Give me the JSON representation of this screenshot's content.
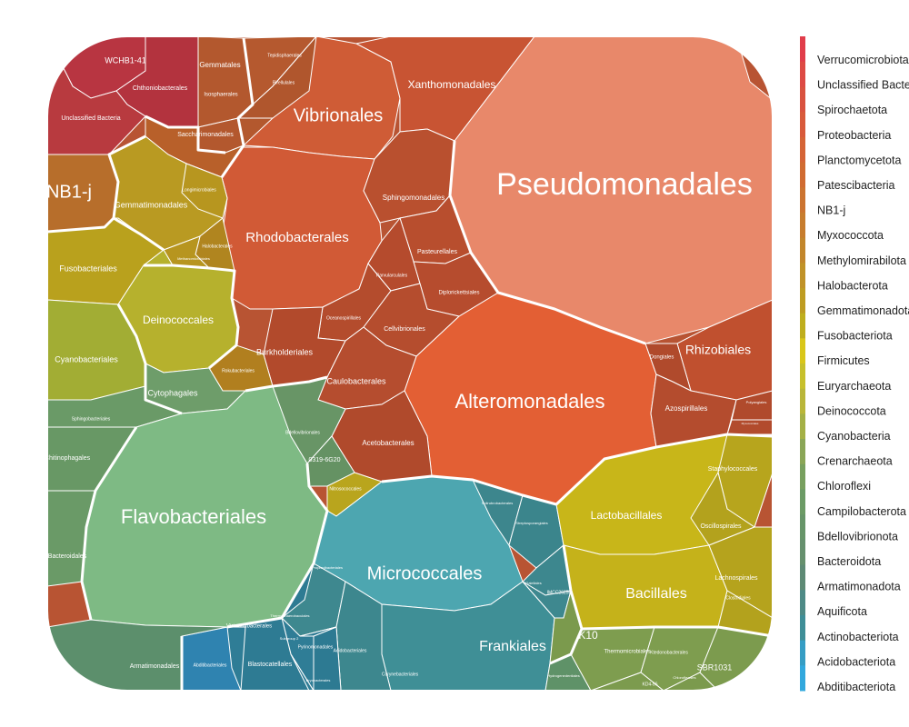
{
  "chart_data": {
    "type": "voronoi-treemap",
    "legend": {
      "placement": "right",
      "entries": [
        "Verrucomicrobiota",
        "Unclassified Bacteria",
        "Spirochaetota",
        "Proteobacteria",
        "Planctomycetota",
        "Patescibacteria",
        "NB1-j",
        "Myxococcota",
        "Methylomirabilota",
        "Halobacterota",
        "Gemmatimonadota",
        "Fusobacteriota",
        "Firmicutes",
        "Euryarchaeota",
        "Deinococcota",
        "Cyanobacteria",
        "Crenarchaeota",
        "Chloroflexi",
        "Campilobacterota",
        "Bdellovibrionota",
        "Bacteroidota",
        "Armatimonadota",
        "Aquificota",
        "Actinobacteriota",
        "Acidobacteriota",
        "Abditibacteriota"
      ],
      "colors": [
        "#e13d4a",
        "#dd4a44",
        "#d9523f",
        "#d85a3b",
        "#d56436",
        "#d06b31",
        "#cc7430",
        "#c77d2e",
        "#c2862c",
        "#c09228",
        "#be9c22",
        "#bfae1e",
        "#d9c61a",
        "#c7c02c",
        "#b9b639",
        "#a4b046",
        "#8aa657",
        "#78a05f",
        "#6c9b66",
        "#679569",
        "#66906e",
        "#5e8a75",
        "#4e8a86",
        "#3f8e97",
        "#369dc4",
        "#32a8dd"
      ]
    },
    "nodes": [
      {
        "label": "Pseudomonadales",
        "group": "Proteobacteria",
        "color": "#e8886a"
      },
      {
        "label": "Alteromonadales",
        "group": "Proteobacteria",
        "color": "#e35f34"
      },
      {
        "label": "Vibrionales",
        "group": "Proteobacteria",
        "color": "#cf5c36"
      },
      {
        "label": "Rhodobacterales",
        "group": "Proteobacteria",
        "color": "#d15a36"
      },
      {
        "label": "Xanthomonadales",
        "group": "Proteobacteria",
        "color": "#c85433"
      },
      {
        "label": "Rhizobiales",
        "group": "Proteobacteria",
        "color": "#c0502f"
      },
      {
        "label": "Sphingomonadales",
        "group": "Proteobacteria",
        "color": "#b9502f"
      },
      {
        "label": "Pasteurellales",
        "group": "Proteobacteria",
        "color": "#b84e2e"
      },
      {
        "label": "Parvularculales",
        "group": "Proteobacteria",
        "color": "#b54b2d"
      },
      {
        "label": "Diplorickettsiales",
        "group": "Proteobacteria",
        "color": "#b64c2e"
      },
      {
        "label": "Oceanospirillales",
        "group": "Proteobacteria",
        "color": "#b44c2d"
      },
      {
        "label": "Cellvibrionales",
        "group": "Proteobacteria",
        "color": "#b54d2e"
      },
      {
        "label": "Burkholderiales",
        "group": "Proteobacteria",
        "color": "#b24a2c"
      },
      {
        "label": "Caulobacterales",
        "group": "Proteobacteria",
        "color": "#b54d2f"
      },
      {
        "label": "Acetobacterales",
        "group": "Proteobacteria",
        "color": "#b04a2c"
      },
      {
        "label": "Dongiales",
        "group": "Proteobacteria",
        "color": "#b04a2c"
      },
      {
        "label": "Azospirillales",
        "group": "Proteobacteria",
        "color": "#b44c2e"
      },
      {
        "label": "Polyangiales",
        "group": "Myxococcota",
        "color": "#b04a2c"
      },
      {
        "label": "Myxococcales",
        "group": "Myxococcota",
        "color": "#b24b2d"
      },
      {
        "label": "WCHB1-41",
        "group": "Verrucomicrobiota",
        "color": "#b83541"
      },
      {
        "label": "Chthoniobacterales",
        "group": "Verrucomicrobiota",
        "color": "#b3333e"
      },
      {
        "label": "Unclassified Bacteria",
        "group": "Unclassified Bacteria",
        "color": "#b83a3f"
      },
      {
        "label": "Gemmatales",
        "group": "Planctomycetota",
        "color": "#b3582e"
      },
      {
        "label": "Tepidisphaerales",
        "group": "Planctomycetota",
        "color": "#b5592f"
      },
      {
        "label": "Pirellulales",
        "group": "Planctomycetota",
        "color": "#b0562d"
      },
      {
        "label": "Isosphaerales",
        "group": "Planctomycetota",
        "color": "#b3582e"
      },
      {
        "label": "Saccharimonadales",
        "group": "Patescibacteria",
        "color": "#b8602a"
      },
      {
        "label": "NB1-j",
        "group": "NB1-j",
        "color": "#b76e2b"
      },
      {
        "label": "Gemmatimonadales",
        "group": "Gemmatimonadota",
        "color": "#b99a22"
      },
      {
        "label": "Longimicrobiales",
        "group": "Gemmatimonadota",
        "color": "#b7961f"
      },
      {
        "label": "Halobacterales",
        "group": "Halobacterota",
        "color": "#b0851f"
      },
      {
        "label": "Methanomicrobiales",
        "group": "Halobacterota",
        "color": "#b7951f"
      },
      {
        "label": "Fusobacteriales",
        "group": "Fusobacteriota",
        "color": "#b9a11d"
      },
      {
        "label": "Deinococcales",
        "group": "Deinococcota",
        "color": "#b6b12d"
      },
      {
        "label": "Cyanobacteriales",
        "group": "Cyanobacteria",
        "color": "#a2ad34"
      },
      {
        "label": "Rokubacteriales",
        "group": "Methylomirabilota",
        "color": "#b17f1f"
      },
      {
        "label": "Cytophagales",
        "group": "Bacteroidota",
        "color": "#6e9d6a"
      },
      {
        "label": "Sphingobacteriales",
        "group": "Bacteroidota",
        "color": "#6a9a67"
      },
      {
        "label": "Chitinophagales",
        "group": "Bacteroidota",
        "color": "#689865"
      },
      {
        "label": "Bacteroidales",
        "group": "Bacteroidota",
        "color": "#6a9a67"
      },
      {
        "label": "Flavobacteriales",
        "group": "Bacteroidota",
        "color": "#7eba84"
      },
      {
        "label": "Bdellovibrionales",
        "group": "Bdellovibrionota",
        "color": "#689566"
      },
      {
        "label": "0319-6G20",
        "group": "Bdellovibrionota",
        "color": "#659263"
      },
      {
        "label": "Nitrosococcales",
        "group": "Firmicutes",
        "color": "#b9a51d"
      },
      {
        "label": "Micrococcales",
        "group": "Actinobacteriota",
        "color": "#4da6b0"
      },
      {
        "label": "Frankiales",
        "group": "Actinobacteriota",
        "color": "#3f8f96"
      },
      {
        "label": "Propionibacteriales",
        "group": "Actinobacteriota",
        "color": "#3e888f"
      },
      {
        "label": "Solirubrobacterales",
        "group": "Actinobacteriota",
        "color": "#3d868d"
      },
      {
        "label": "Streptosporangiales",
        "group": "Actinobacteriota",
        "color": "#3b858c"
      },
      {
        "label": "Gaiellales",
        "group": "Actinobacteriota",
        "color": "#3d878e"
      },
      {
        "label": "IMCC26256",
        "group": "Actinobacteriota",
        "color": "#3e888f"
      },
      {
        "label": "Corynebacteriales",
        "group": "Actinobacteriota",
        "color": "#3d878e"
      },
      {
        "label": "Pyrinomonadales",
        "group": "Acidobacteriota",
        "color": "#2f7d96"
      },
      {
        "label": "Blastocatellales",
        "group": "Acidobacteriota",
        "color": "#2e7b93"
      },
      {
        "label": "Vicinamibacterales",
        "group": "Acidobacteriota",
        "color": "#2f7d96"
      },
      {
        "label": "Thermoanaerobaculales",
        "group": "Acidobacteriota",
        "color": "#2e7b93"
      },
      {
        "label": "Acidobacteriales",
        "group": "Acidobacteriota",
        "color": "#2d7a92"
      },
      {
        "label": "Bryobacterales",
        "group": "Acidobacteriota",
        "color": "#2f7d96"
      },
      {
        "label": "Subgroup 2",
        "group": "Acidobacteriota",
        "color": "#2e7b93"
      },
      {
        "label": "Abditibacteriales",
        "group": "Abditibacteriota",
        "color": "#2f83b0"
      },
      {
        "label": "Armatimonadales",
        "group": "Armatimonadota",
        "color": "#5c8f6c"
      },
      {
        "label": "Lactobacillales",
        "group": "Firmicutes",
        "color": "#c8b619"
      },
      {
        "label": "Bacillales",
        "group": "Firmicutes",
        "color": "#c5b21a"
      },
      {
        "label": "Staphylococcales",
        "group": "Firmicutes",
        "color": "#b7a51d"
      },
      {
        "label": "Oscillospirales",
        "group": "Firmicutes",
        "color": "#b3a21d"
      },
      {
        "label": "Lachnospirales",
        "group": "Firmicutes",
        "color": "#b5a31d"
      },
      {
        "label": "Clostridiales",
        "group": "Firmicutes",
        "color": "#b3a21d"
      },
      {
        "label": "Thermomicrobiales",
        "group": "Chloroflexi",
        "color": "#7e9d4f"
      },
      {
        "label": "Ktedonobacterales",
        "group": "Chloroflexi",
        "color": "#7e9d4f"
      },
      {
        "label": "Chloroflexales",
        "group": "Chloroflexi",
        "color": "#7b9a4d"
      },
      {
        "label": "SBR1031",
        "group": "Chloroflexi",
        "color": "#7c9b4e"
      },
      {
        "label": "KD4-96",
        "group": "Chloroflexi",
        "color": "#7c9b4e"
      },
      {
        "label": "Hydrogenedentiales",
        "group": "Chloroflexi",
        "color": "#5f9268"
      },
      {
        "label": "Chlorobiales",
        "group": "Chloroflexi",
        "color": "#7b9a4d"
      }
    ]
  }
}
